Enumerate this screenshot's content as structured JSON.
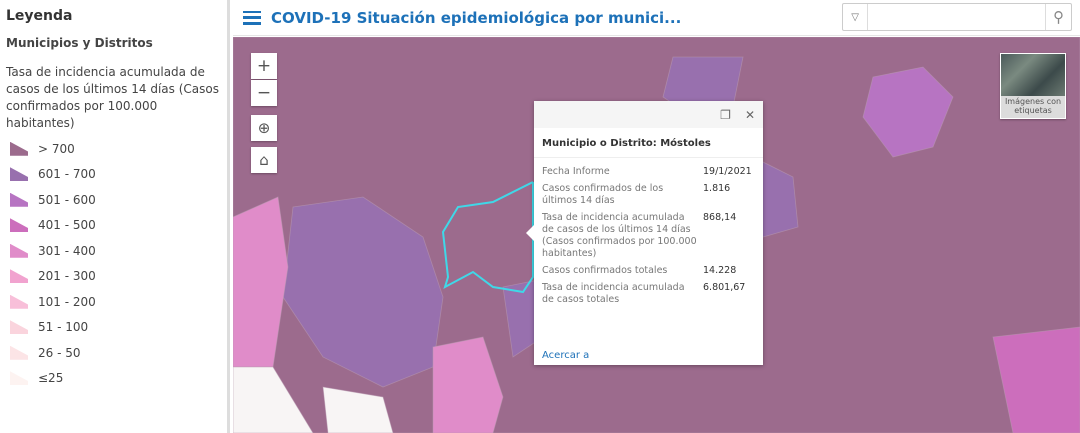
{
  "legend": {
    "title": "Leyenda",
    "layer": "Municipios y Distritos",
    "description": "Tasa de incidencia acumulada de casos de los últimos 14 días (Casos confirmados por 100.000 habitantes)",
    "classes": [
      {
        "label": "> 700",
        "color": "#9c6b8d"
      },
      {
        "label": "601 - 700",
        "color": "#9870ae"
      },
      {
        "label": "501 - 600",
        "color": "#b774c2"
      },
      {
        "label": "401 - 500",
        "color": "#cc6ebc"
      },
      {
        "label": "301 - 400",
        "color": "#e08cc9"
      },
      {
        "label": "201 - 300",
        "color": "#f1a3cf"
      },
      {
        "label": "101 - 200",
        "color": "#f8bfd9"
      },
      {
        "label": "51 - 100",
        "color": "#fad4dd"
      },
      {
        "label": "26 - 50",
        "color": "#fce4e6"
      },
      {
        "label": "≤25",
        "color": "#fdf3f1"
      }
    ]
  },
  "header": {
    "title": "COVID-19 Situación epidemiológica por munici...",
    "menu_icon": "hamburger-icon",
    "search_value": "",
    "search_icon": "search-icon"
  },
  "map": {
    "controls": {
      "zoom_in": "+",
      "zoom_out": "−"
    },
    "basemap_label": "Imágenes con etiquetas",
    "highlight_color": "#3fd8e8"
  },
  "popup": {
    "title": "Municipio o Distrito: Móstoles",
    "rows": [
      {
        "label": "Fecha Informe",
        "value": "19/1/2021"
      },
      {
        "label": "Casos confirmados de los últimos 14 días",
        "value": "1.816"
      },
      {
        "label": "Tasa de incidencia acumulada de casos de los últimos 14 días (Casos confirmados por 100.000 habitantes)",
        "value": "868,14"
      },
      {
        "label": "Casos confirmados totales",
        "value": "14.228"
      },
      {
        "label": "Tasa de incidencia acumulada de casos totales",
        "value": "6.801,67"
      }
    ],
    "zoom_link": "Acercar a"
  }
}
